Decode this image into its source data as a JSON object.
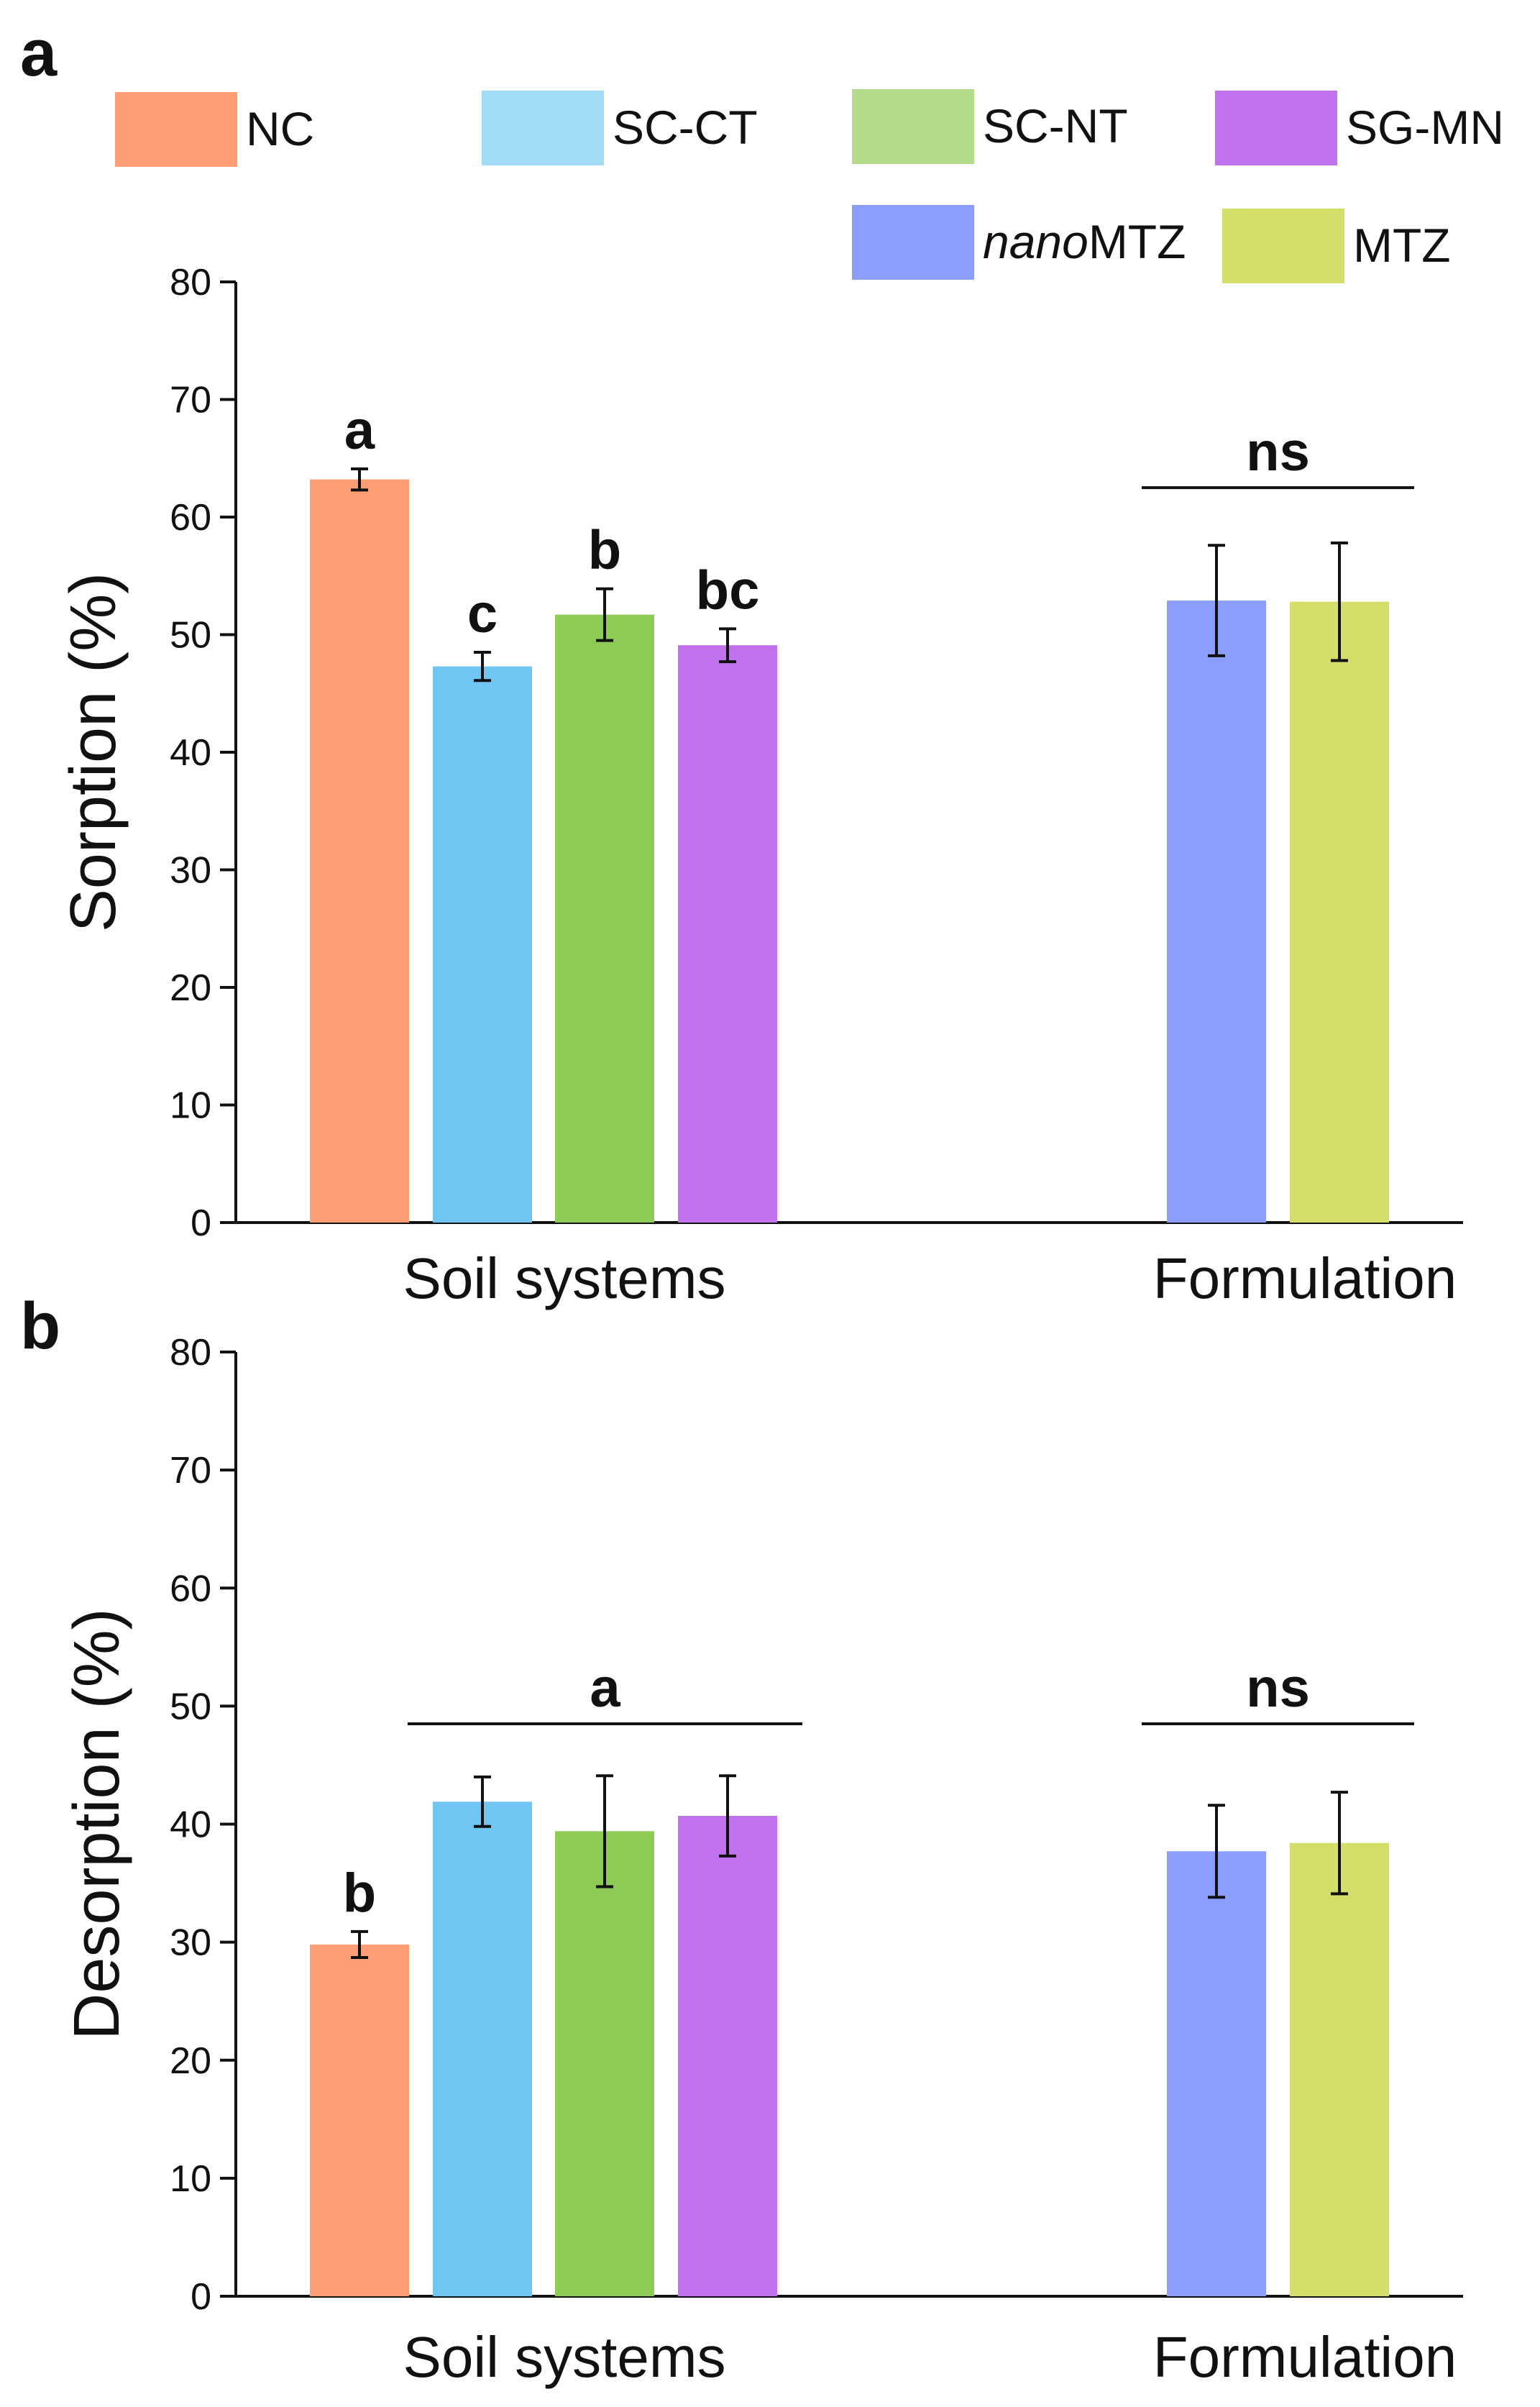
{
  "legend": [
    {
      "label": "NC",
      "color": "#FC9D74"
    },
    {
      "label": "SC-CT",
      "color": "#A2DBF6"
    },
    {
      "label": "SC-NT",
      "color": "#B4DB8C"
    },
    {
      "label": "SG-MN",
      "color": "#C071EC"
    },
    {
      "label": "nanoMTZ",
      "label_italic": "nano",
      "label_rest": "MTZ",
      "color": "#8C9EFC"
    },
    {
      "label": "MTZ",
      "color": "#D4DF69"
    }
  ],
  "chart_data": [
    {
      "type": "bar",
      "panel_label": "a",
      "ylabel": "Sorption (%)",
      "ylim": [
        0,
        80
      ],
      "yticks": [
        0,
        10,
        20,
        30,
        40,
        50,
        60,
        70,
        80
      ],
      "groups": [
        "Soil systems",
        "Formulation"
      ],
      "series": [
        {
          "name": "NC",
          "group": 0,
          "value": 63.2,
          "err": 0.9,
          "sig": "a",
          "color": "#FC9D74"
        },
        {
          "name": "SC-CT",
          "group": 0,
          "value": 47.3,
          "err": 1.2,
          "sig": "c",
          "color": "#71C5F3"
        },
        {
          "name": "SC-NT",
          "group": 0,
          "value": 51.7,
          "err": 2.2,
          "sig": "b",
          "color": "#8DCB56"
        },
        {
          "name": "SG-MN",
          "group": 0,
          "value": 49.1,
          "err": 1.4,
          "sig": "bc",
          "color": "#C071EC"
        },
        {
          "name": "nanoMTZ",
          "group": 1,
          "value": 52.9,
          "err": 4.7,
          "sig": "",
          "color": "#8C9EFC"
        },
        {
          "name": "MTZ",
          "group": 1,
          "value": 52.8,
          "err": 5.0,
          "sig": "",
          "color": "#D4DF69"
        }
      ],
      "brackets": [
        {
          "label": "ns",
          "from": 4,
          "to": 5,
          "y": 62.5
        }
      ]
    },
    {
      "type": "bar",
      "panel_label": "b",
      "ylabel": "Desorption (%)",
      "ylim": [
        0,
        80
      ],
      "yticks": [
        0,
        10,
        20,
        30,
        40,
        50,
        60,
        70,
        80
      ],
      "groups": [
        "Soil systems",
        "Formulation"
      ],
      "series": [
        {
          "name": "NC",
          "group": 0,
          "value": 29.8,
          "err": 1.1,
          "sig": "b",
          "color": "#FC9D74"
        },
        {
          "name": "SC-CT",
          "group": 0,
          "value": 41.9,
          "err": 2.1,
          "sig": "",
          "color": "#71C5F3"
        },
        {
          "name": "SC-NT",
          "group": 0,
          "value": 39.4,
          "err": 4.7,
          "sig": "",
          "color": "#8DCB56"
        },
        {
          "name": "SG-MN",
          "group": 0,
          "value": 40.7,
          "err": 3.4,
          "sig": "",
          "color": "#C071EC"
        },
        {
          "name": "nanoMTZ",
          "group": 1,
          "value": 37.7,
          "err": 3.9,
          "sig": "",
          "color": "#8C9EFC"
        },
        {
          "name": "MTZ",
          "group": 1,
          "value": 38.4,
          "err": 4.3,
          "sig": "",
          "color": "#D4DF69"
        }
      ],
      "brackets": [
        {
          "label": "a",
          "from": 1,
          "to": 3,
          "y": 48.5
        },
        {
          "label": "ns",
          "from": 4,
          "to": 5,
          "y": 48.5
        }
      ]
    }
  ]
}
